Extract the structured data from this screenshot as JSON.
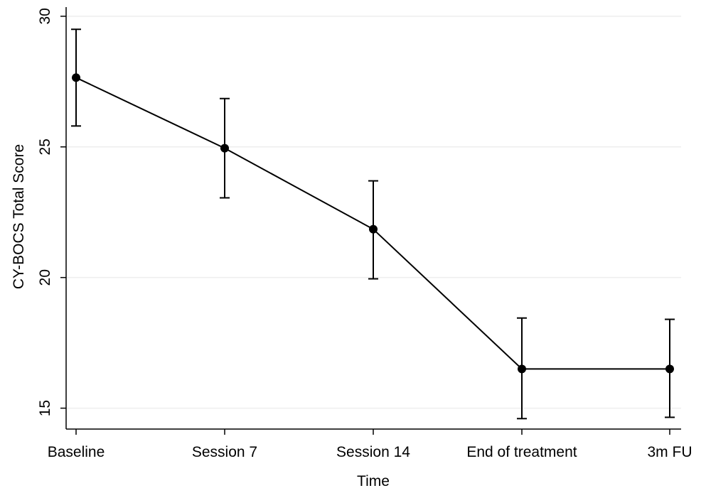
{
  "chart_data": {
    "type": "line",
    "xlabel": "Time",
    "ylabel": "CY-BOCS Total Score",
    "categories": [
      "Baseline",
      "Session 7",
      "Session 14",
      "End of treatment",
      "3m FU"
    ],
    "series": [
      {
        "values": [
          27.65,
          24.95,
          21.85,
          16.5,
          16.5
        ],
        "error_low": [
          25.8,
          23.05,
          19.95,
          14.6,
          14.65
        ],
        "error_high": [
          29.5,
          26.85,
          23.7,
          18.45,
          18.4
        ]
      }
    ],
    "ylim": [
      14.2,
      30.35
    ],
    "yticks": [
      "15",
      "20",
      "25",
      "30"
    ],
    "grid": true,
    "colors": {
      "line": "#000000",
      "grid": "#eeeeee",
      "axis": "#000000"
    }
  }
}
